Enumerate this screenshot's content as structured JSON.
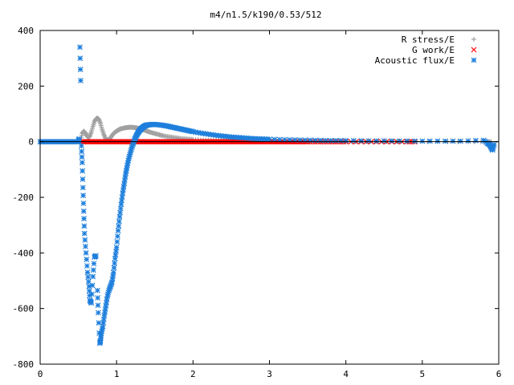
{
  "chart_data": {
    "type": "scatter",
    "title": "m4/n1.5/k190/0.53/512",
    "xlabel": "",
    "ylabel": "",
    "xlim": [
      0,
      6
    ],
    "ylim": [
      -800,
      400
    ],
    "xticks": [
      0,
      1,
      2,
      3,
      4,
      5,
      6
    ],
    "yticks": [
      400,
      200,
      0,
      -200,
      -400,
      -600,
      -800
    ],
    "grid": false,
    "legend_position": "top-right",
    "series": [
      {
        "name": "R stress/E",
        "color": "#a0a0a0",
        "marker": "plus",
        "x": [
          0.0,
          0.1,
          0.2,
          0.3,
          0.4,
          0.5,
          0.53,
          0.55,
          0.57,
          0.59,
          0.61,
          0.63,
          0.65,
          0.67,
          0.69,
          0.71,
          0.73,
          0.75,
          0.77,
          0.79,
          0.81,
          0.83,
          0.85,
          0.87,
          0.89,
          0.91,
          0.93,
          0.95,
          0.97,
          0.99,
          1.01,
          1.03,
          1.05,
          1.08,
          1.11,
          1.14,
          1.17,
          1.2,
          1.23,
          1.26,
          1.29,
          1.32,
          1.35,
          1.38,
          1.41,
          1.44,
          1.48,
          1.52,
          1.56,
          1.6,
          1.65,
          1.7,
          1.75,
          1.8,
          1.85,
          1.9,
          1.95,
          2.0,
          2.1,
          2.2,
          2.3,
          2.4,
          2.5,
          2.6,
          2.7,
          2.8,
          2.9,
          3.0,
          3.2,
          3.4,
          3.6,
          3.8,
          4.0,
          4.4,
          4.8,
          5.2,
          5.6,
          5.85,
          5.9
        ],
        "values": [
          0,
          0,
          0,
          0,
          0,
          0,
          5,
          30,
          38,
          32,
          22,
          15,
          20,
          35,
          55,
          72,
          82,
          85,
          80,
          65,
          45,
          28,
          15,
          8,
          6,
          10,
          18,
          26,
          32,
          36,
          40,
          43,
          46,
          48,
          50,
          51,
          52,
          52,
          51,
          50,
          48,
          46,
          43,
          40,
          37,
          34,
          31,
          28,
          25,
          22,
          19,
          17,
          15,
          13,
          11,
          10,
          9,
          8,
          6,
          5,
          4,
          3,
          3,
          2,
          2,
          1,
          1,
          1,
          1,
          1,
          0,
          0,
          0,
          0,
          0,
          0,
          0,
          0,
          0
        ]
      },
      {
        "name": "G work/E",
        "color": "#ff0000",
        "marker": "cross",
        "x": [
          0.55,
          0.6,
          0.65,
          0.7,
          0.75,
          0.8,
          0.85,
          0.9,
          0.95,
          1.0,
          1.05,
          1.1,
          1.15,
          1.2,
          1.25,
          1.3,
          1.35,
          1.4,
          1.45,
          1.5,
          1.55,
          1.6,
          1.65,
          1.7,
          1.75,
          1.8,
          1.85,
          1.9,
          1.95,
          2.0,
          2.05,
          2.1,
          2.15,
          2.2,
          2.25,
          2.3,
          2.35,
          2.4,
          2.45,
          2.5,
          2.55,
          2.6,
          2.65,
          2.7,
          2.75,
          2.8,
          2.85,
          2.9,
          2.95,
          3.0,
          3.05,
          3.1,
          3.15,
          3.2,
          3.25,
          3.3,
          3.35,
          3.4,
          3.45,
          3.5,
          3.6,
          3.7,
          3.8,
          3.9,
          4.0,
          4.2,
          4.4,
          4.6,
          4.8,
          4.9
        ],
        "values": [
          0,
          0,
          0,
          0,
          0,
          0,
          0,
          0,
          0,
          0,
          0,
          0,
          0,
          0,
          0,
          0,
          0,
          0,
          0,
          0,
          0,
          0,
          0,
          0,
          0,
          0,
          0,
          0,
          0,
          0,
          0,
          0,
          0,
          0,
          0,
          0,
          0,
          0,
          0,
          0,
          0,
          0,
          0,
          0,
          0,
          0,
          0,
          0,
          0,
          0,
          0,
          0,
          0,
          0,
          0,
          0,
          0,
          0,
          0,
          0,
          0,
          0,
          0,
          0,
          0,
          0,
          0,
          0,
          0,
          0
        ]
      },
      {
        "name": "Acoustic flux/E",
        "color": "#1e7fdc",
        "marker": "star",
        "x": [
          0.0,
          0.05,
          0.1,
          0.15,
          0.2,
          0.25,
          0.3,
          0.35,
          0.4,
          0.45,
          0.5,
          0.51,
          0.52,
          0.53,
          0.54,
          0.55,
          0.56,
          0.57,
          0.58,
          0.6,
          0.62,
          0.64,
          0.65,
          0.67,
          0.69,
          0.71,
          0.73,
          0.75,
          0.76,
          0.78,
          0.79,
          0.8,
          0.82,
          0.84,
          0.86,
          0.88,
          0.9,
          0.92,
          0.94,
          0.96,
          0.98,
          1.0,
          1.02,
          1.04,
          1.06,
          1.08,
          1.1,
          1.12,
          1.14,
          1.16,
          1.18,
          1.2,
          1.22,
          1.24,
          1.26,
          1.28,
          1.3,
          1.32,
          1.34,
          1.36,
          1.38,
          1.4,
          1.43,
          1.46,
          1.5,
          1.55,
          1.6,
          1.65,
          1.7,
          1.75,
          1.8,
          1.85,
          1.9,
          1.95,
          2.0,
          2.1,
          2.2,
          2.3,
          2.4,
          2.5,
          2.6,
          2.7,
          2.8,
          2.9,
          3.0,
          3.2,
          3.4,
          3.6,
          3.8,
          4.0,
          4.3,
          4.6,
          4.9,
          5.2,
          5.5,
          5.8,
          5.85,
          5.88,
          5.9,
          5.92,
          5.94
        ],
        "values": [
          0,
          0,
          0,
          0,
          0,
          0,
          0,
          0,
          0,
          0,
          0,
          10,
          340,
          220,
          -15,
          -75,
          -165,
          -250,
          -330,
          -400,
          -470,
          -520,
          -570,
          -580,
          -485,
          -415,
          -410,
          -535,
          -615,
          -725,
          -715,
          -690,
          -665,
          -625,
          -590,
          -555,
          -535,
          -520,
          -505,
          -470,
          -420,
          -380,
          -320,
          -270,
          -225,
          -185,
          -150,
          -115,
          -85,
          -60,
          -40,
          -20,
          -5,
          10,
          22,
          32,
          40,
          46,
          51,
          55,
          58,
          60,
          61,
          62,
          62,
          61,
          59,
          57,
          54,
          51,
          48,
          45,
          42,
          39,
          36,
          31,
          27,
          23,
          20,
          17,
          15,
          13,
          11,
          10,
          9,
          7,
          6,
          5,
          4,
          4,
          3,
          3,
          2,
          2,
          2,
          5,
          -5,
          -10,
          -20,
          -30,
          -10
        ]
      }
    ]
  }
}
